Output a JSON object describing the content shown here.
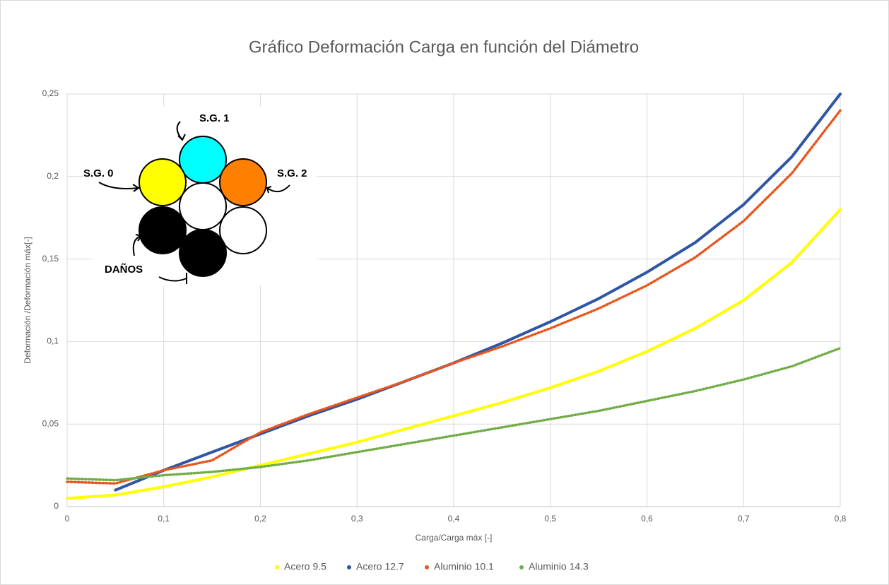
{
  "chart_data": {
    "type": "line",
    "title": "Gráfico Deformación Carga en función del Diámetro",
    "x_label": "Carga/Carga máx [-]",
    "y_label": "Deformación /Deformación máx[-]",
    "annotations": [
      "S.G. 1",
      "S.G. 0",
      "S.G. 2",
      "DAÑOS"
    ],
    "x": [
      0,
      0.05,
      0.1,
      0.15,
      0.2,
      0.25,
      0.3,
      0.35,
      0.4,
      0.45,
      0.5,
      0.55,
      0.6,
      0.65,
      0.7,
      0.75,
      0.8
    ],
    "series": [
      {
        "name": "Acero 9.5",
        "color": "#ffff00",
        "style": "solid",
        "values": [
          0.005,
          0.007,
          0.012,
          0.018,
          0.025,
          0.032,
          0.039,
          0.047,
          0.055,
          0.063,
          0.072,
          0.082,
          0.094,
          0.108,
          0.125,
          0.148,
          0.18
        ]
      },
      {
        "name": "Acero 12.7",
        "color": "#2f55a4",
        "style": "solid",
        "values": [
          null,
          0.01,
          0.022,
          0.033,
          0.044,
          0.055,
          0.065,
          0.076,
          0.087,
          0.099,
          0.112,
          0.126,
          0.142,
          0.16,
          0.183,
          0.212,
          0.25
        ]
      },
      {
        "name": "Aluminio 10.1",
        "color": "#e8561e",
        "style": "dotted",
        "values": [
          0.015,
          0.014,
          0.022,
          0.028,
          0.045,
          0.056,
          0.066,
          0.076,
          0.087,
          0.097,
          0.108,
          0.12,
          0.134,
          0.151,
          0.173,
          0.202,
          0.24
        ]
      },
      {
        "name": "Aluminio 14.3",
        "color": "#70ad47",
        "style": "dotted",
        "values": [
          0.017,
          0.016,
          0.019,
          0.021,
          0.024,
          0.028,
          0.033,
          0.038,
          0.043,
          0.048,
          0.053,
          0.058,
          0.064,
          0.07,
          0.077,
          0.085,
          0.096
        ]
      }
    ],
    "xlim": [
      0,
      0.8
    ],
    "xticks": [
      0,
      {
        "value": 0.1,
        "label": "0,1"
      },
      {
        "value": 0.2,
        "label": "0,2"
      },
      {
        "value": 0.3,
        "label": "0,3"
      },
      {
        "value": 0.4,
        "label": "0,4"
      },
      {
        "value": 0.5,
        "label": "0,5"
      },
      {
        "value": 0.6,
        "label": "0,6"
      },
      {
        "value": 0.7,
        "label": "0,7"
      },
      {
        "value": 0.8,
        "label": "0,8"
      }
    ],
    "ylim": [
      0,
      0.25
    ],
    "yticks": [
      0,
      {
        "value": 0.05,
        "label": "0,05"
      },
      {
        "value": 0.1,
        "label": "0,1"
      },
      {
        "value": 0.15,
        "label": "0,15"
      },
      {
        "value": 0.2,
        "label": "0,2"
      },
      {
        "value": 0.25,
        "label": "0,25"
      }
    ],
    "grid": true,
    "legend": "bottom"
  }
}
